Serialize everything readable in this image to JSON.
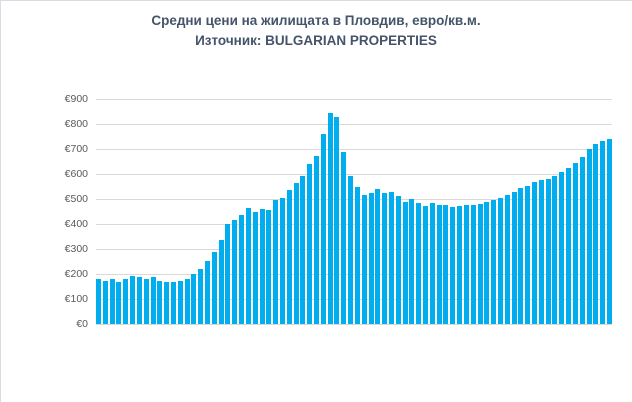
{
  "chart_data": {
    "type": "bar",
    "title": "Средни цени на жилищата в Пловдив, евро/кв.м.",
    "subtitle": "Източник: BULGARIAN PROPERTIES",
    "xlabel": "",
    "ylabel": "",
    "ylim": [
      0,
      900
    ],
    "yticks": [
      "€0",
      "€100",
      "€200",
      "€300",
      "€400",
      "€500",
      "€600",
      "€700",
      "€800",
      "€900"
    ],
    "grid": true,
    "legend": null,
    "bar_color": "#00AEEF",
    "categories": [],
    "values": [
      180,
      172,
      180,
      168,
      180,
      192,
      188,
      180,
      188,
      172,
      168,
      168,
      172,
      180,
      200,
      220,
      252,
      288,
      336,
      400,
      416,
      436,
      464,
      448,
      460,
      456,
      496,
      504,
      536,
      564,
      592,
      640,
      672,
      760,
      844,
      828,
      688,
      592,
      548,
      516,
      524,
      540,
      524,
      528,
      512,
      488,
      500,
      484,
      472,
      484,
      476,
      476,
      468,
      472,
      476,
      476,
      480,
      488,
      496,
      504,
      516,
      528,
      544,
      552,
      568,
      576,
      580,
      592,
      608,
      624,
      644,
      668,
      700,
      720,
      732,
      740
    ]
  }
}
